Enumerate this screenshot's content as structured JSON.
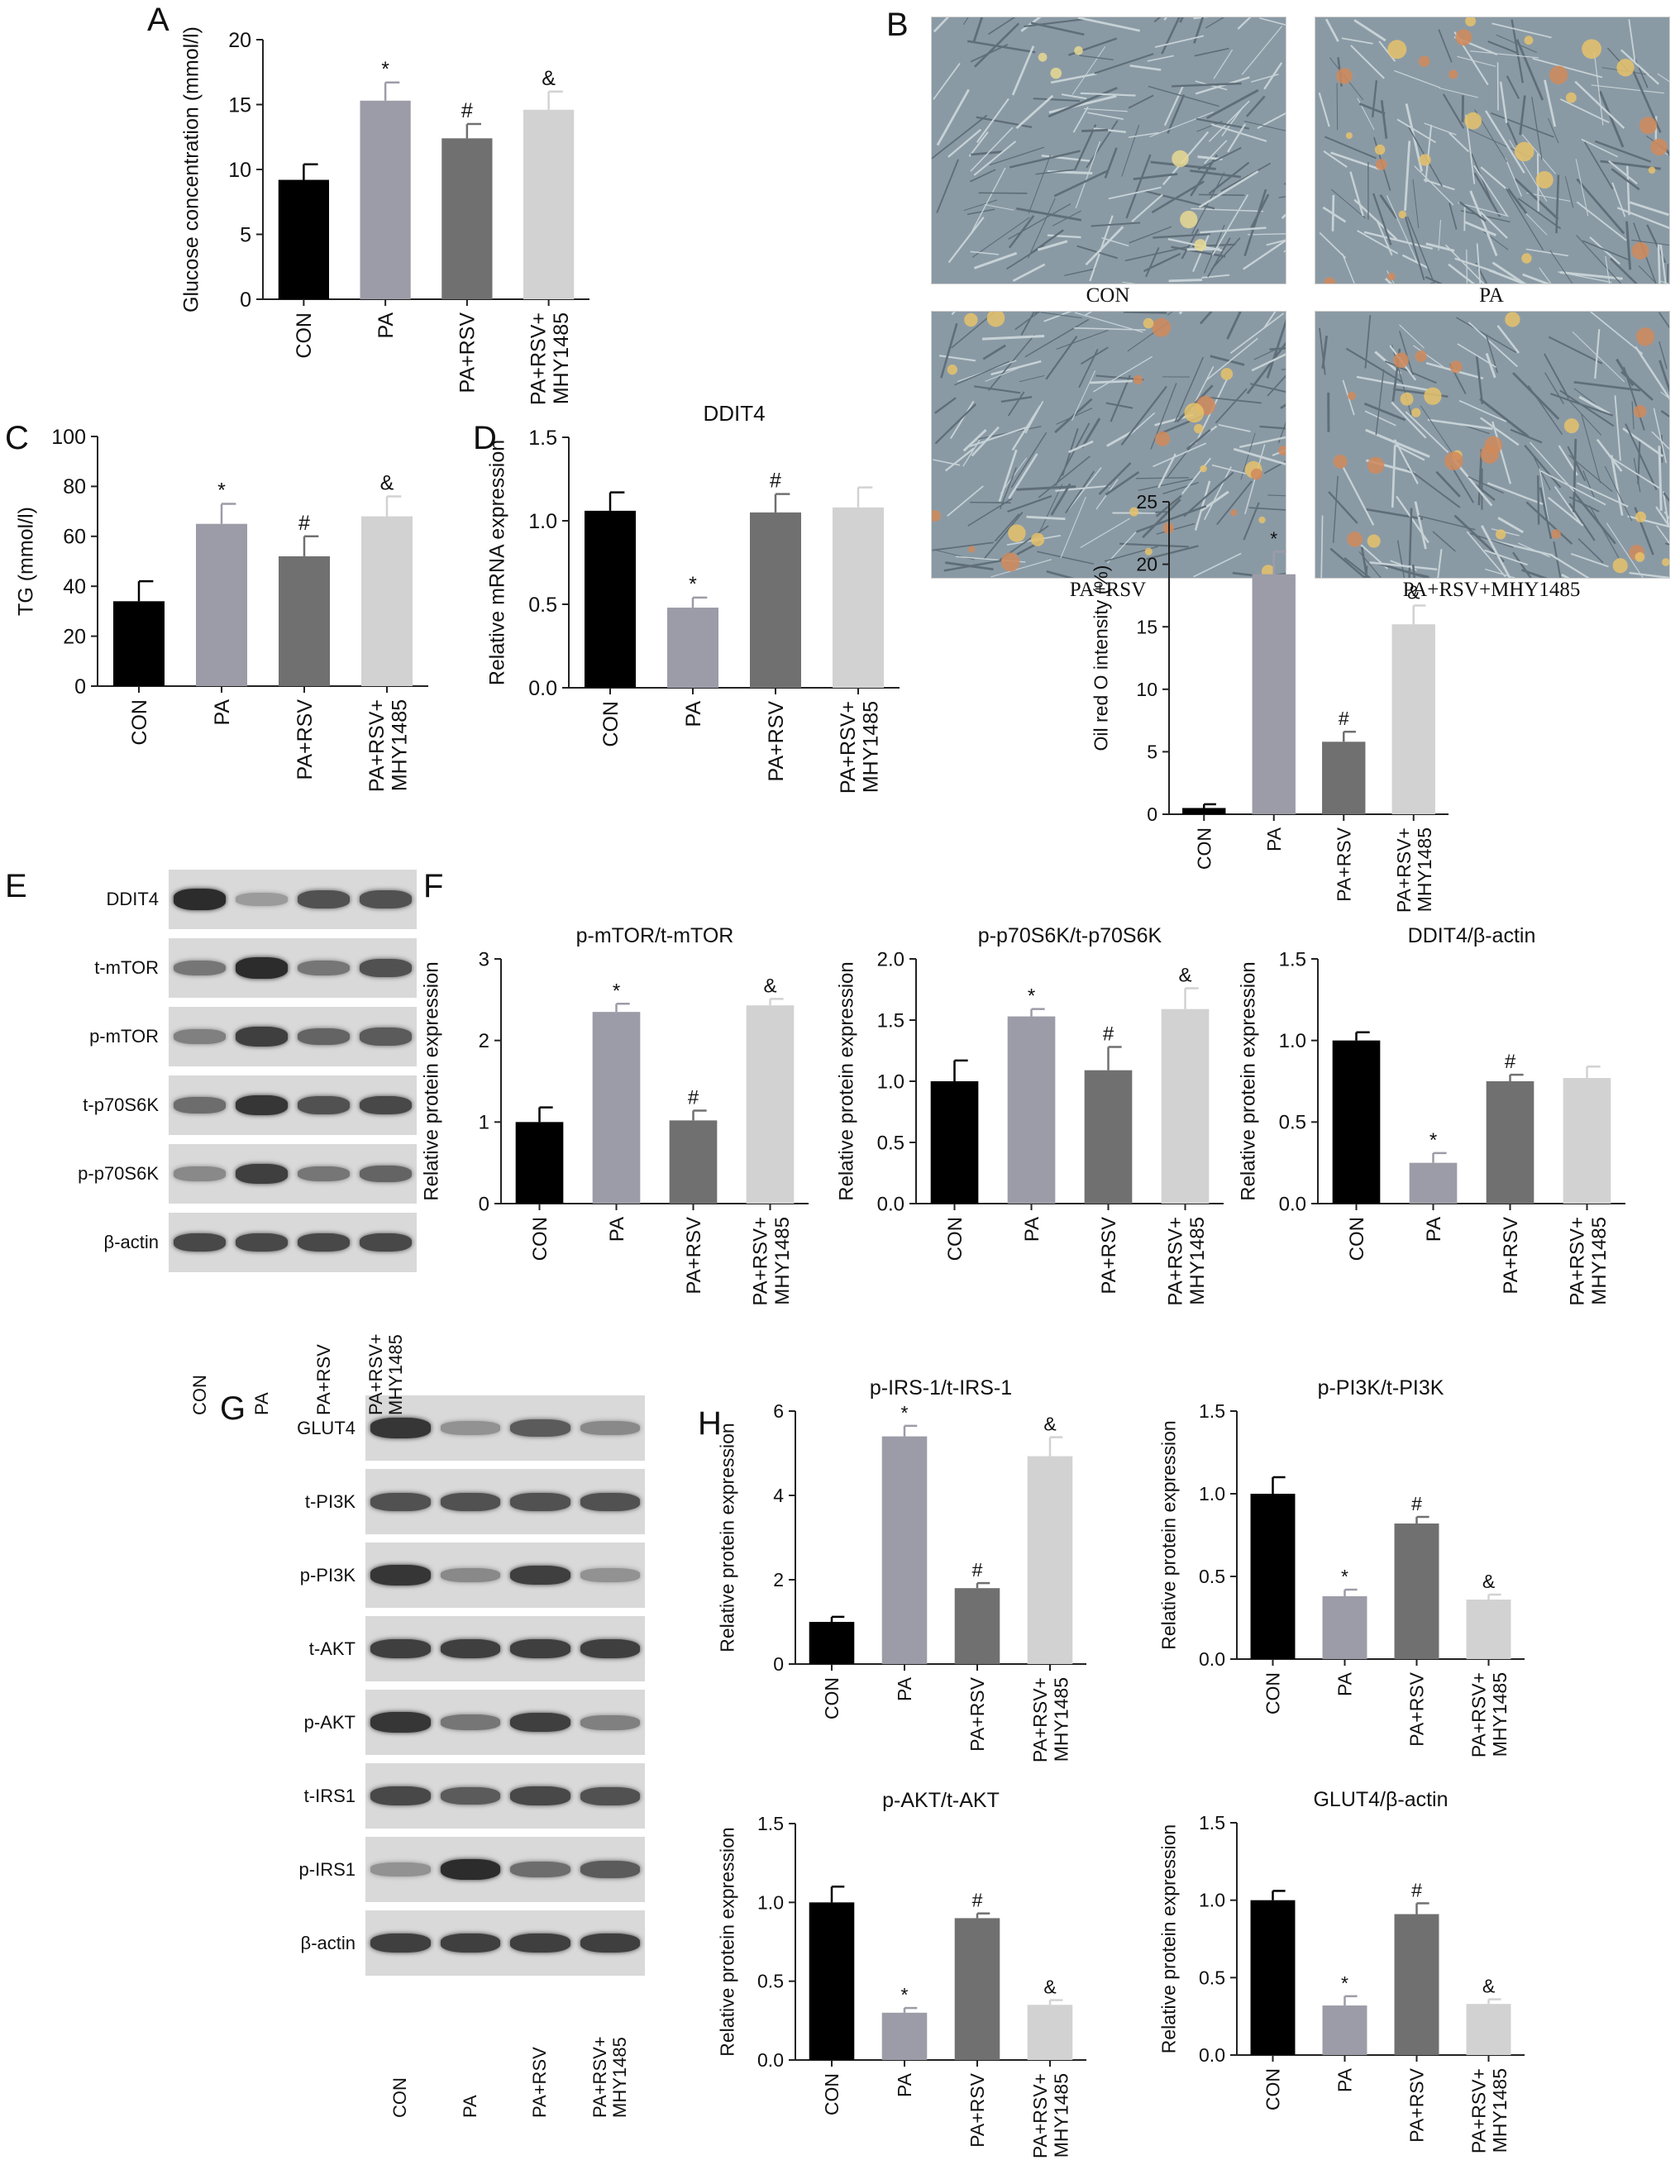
{
  "panel_labels": {
    "A": "A",
    "B": "B",
    "C": "C",
    "D": "D",
    "E": "E",
    "F": "F",
    "G": "G",
    "H": "H"
  },
  "colors": {
    "CON": "#000000",
    "PA": "#9c9ca8",
    "PA+RSV": "#707070",
    "PA+RSV+MHY1485": "#d2d2d2"
  },
  "micrographs": {
    "captions": [
      "CON",
      "PA",
      "PA+RSV",
      "PA+RSV+MHY1485"
    ],
    "background_color": "#8a9aa5",
    "stain_color": "#d08a5a"
  },
  "blot_E": {
    "rows": [
      "DDIT4",
      "t-mTOR",
      "p-mTOR",
      "t-p70S6K",
      "p-p70S6K",
      "β-actin"
    ],
    "lanes": [
      "CON",
      "PA",
      "PA+RSV",
      "PA+RSV+\nMHY1485"
    ],
    "band_intensity": [
      [
        0.95,
        0.35,
        0.75,
        0.75
      ],
      [
        0.55,
        0.95,
        0.55,
        0.75
      ],
      [
        0.5,
        0.85,
        0.65,
        0.7
      ],
      [
        0.6,
        0.9,
        0.75,
        0.8
      ],
      [
        0.45,
        0.85,
        0.55,
        0.65
      ],
      [
        0.8,
        0.8,
        0.8,
        0.8
      ]
    ]
  },
  "blot_G": {
    "rows": [
      "GLUT4",
      "t-PI3K",
      "p-PI3K",
      "t-AKT",
      "p-AKT",
      "t-IRS1",
      "p-IRS1",
      "β-actin"
    ],
    "lanes": [
      "CON",
      "PA",
      "PA+RSV",
      "PA+RSV+\nMHY1485"
    ],
    "band_intensity": [
      [
        0.9,
        0.4,
        0.7,
        0.45
      ],
      [
        0.75,
        0.75,
        0.75,
        0.75
      ],
      [
        0.9,
        0.45,
        0.85,
        0.4
      ],
      [
        0.85,
        0.85,
        0.85,
        0.85
      ],
      [
        0.9,
        0.55,
        0.85,
        0.5
      ],
      [
        0.8,
        0.7,
        0.8,
        0.75
      ],
      [
        0.4,
        0.95,
        0.6,
        0.7
      ],
      [
        0.85,
        0.85,
        0.85,
        0.85
      ]
    ]
  },
  "chart_data": [
    {
      "id": "A",
      "type": "bar",
      "title": "",
      "ylabel": "Glucose concentration (mmol/l)",
      "categories": [
        "CON",
        "PA",
        "PA+RSV",
        "PA+RSV+\nMHY1485"
      ],
      "values": [
        9.2,
        15.3,
        12.4,
        14.6
      ],
      "errors": [
        1.2,
        1.4,
        1.1,
        1.4
      ],
      "sig": [
        "",
        "*",
        "#",
        "&"
      ],
      "ylim": [
        0,
        20
      ],
      "yticks": [
        0,
        5,
        10,
        15,
        20
      ],
      "ytick_labels": [
        "0",
        "5",
        "10",
        "15",
        "20"
      ]
    },
    {
      "id": "C",
      "type": "bar",
      "title": "",
      "ylabel": "TG (mmol/l)",
      "categories": [
        "CON",
        "PA",
        "PA+RSV",
        "PA+RSV+\nMHY1485"
      ],
      "values": [
        34,
        65,
        52,
        68
      ],
      "errors": [
        8,
        8,
        8,
        8
      ],
      "sig": [
        "",
        "*",
        "#",
        "&"
      ],
      "ylim": [
        0,
        100
      ],
      "yticks": [
        0,
        20,
        40,
        60,
        80,
        100
      ],
      "ytick_labels": [
        "0",
        "20",
        "40",
        "60",
        "80",
        "100"
      ]
    },
    {
      "id": "D",
      "type": "bar",
      "title": "DDIT4",
      "ylabel": "Relative mRNA expression",
      "categories": [
        "CON",
        "PA",
        "PA+RSV",
        "PA+RSV+\nMHY1485"
      ],
      "values": [
        1.06,
        0.48,
        1.05,
        1.08
      ],
      "errors": [
        0.11,
        0.06,
        0.11,
        0.12
      ],
      "sig": [
        "",
        "*",
        "#",
        ""
      ],
      "ylim": [
        0,
        1.5
      ],
      "yticks": [
        0,
        0.5,
        1.0,
        1.5
      ],
      "ytick_labels": [
        "0.0",
        "0.5",
        "1.0",
        "1.5"
      ]
    },
    {
      "id": "Boil",
      "type": "bar",
      "title": "",
      "ylabel": "Oil red O intensity (%)",
      "categories": [
        "CON",
        "PA",
        "PA+RSV",
        "PA+RSV+\nMHY1485"
      ],
      "values": [
        0.5,
        19.2,
        5.8,
        15.2
      ],
      "errors": [
        0.3,
        1.8,
        0.8,
        1.5
      ],
      "sig": [
        "",
        "*",
        "#",
        "&"
      ],
      "ylim": [
        0,
        25
      ],
      "yticks": [
        0,
        5,
        10,
        15,
        20,
        25
      ],
      "ytick_labels": [
        "0",
        "5",
        "10",
        "15",
        "20",
        "25"
      ]
    },
    {
      "id": "F1",
      "type": "bar",
      "title": "p-mTOR/t-mTOR",
      "ylabel": "Relative protein expression",
      "categories": [
        "CON",
        "PA",
        "PA+RSV",
        "PA+RSV+\nMHY1485"
      ],
      "values": [
        1.0,
        2.35,
        1.02,
        2.43
      ],
      "errors": [
        0.18,
        0.1,
        0.12,
        0.08
      ],
      "sig": [
        "",
        "*",
        "#",
        "&"
      ],
      "ylim": [
        0,
        3
      ],
      "yticks": [
        0,
        1,
        2,
        3
      ],
      "ytick_labels": [
        "0",
        "1",
        "2",
        "3"
      ]
    },
    {
      "id": "F2",
      "type": "bar",
      "title": "p-p70S6K/t-p70S6K",
      "ylabel": "Relative protein expression",
      "categories": [
        "CON",
        "PA",
        "PA+RSV",
        "PA+RSV+\nMHY1485"
      ],
      "values": [
        1.0,
        1.53,
        1.09,
        1.59
      ],
      "errors": [
        0.17,
        0.06,
        0.19,
        0.17
      ],
      "sig": [
        "",
        "*",
        "#",
        "&"
      ],
      "ylim": [
        0,
        2.0
      ],
      "yticks": [
        0,
        0.5,
        1.0,
        1.5,
        2.0
      ],
      "ytick_labels": [
        "0.0",
        "0.5",
        "1.0",
        "1.5",
        "2.0"
      ]
    },
    {
      "id": "F3",
      "type": "bar",
      "title": "DDIT4/β-actin",
      "ylabel": "Relative protein expression",
      "categories": [
        "CON",
        "PA",
        "PA+RSV",
        "PA+RSV+\nMHY1485"
      ],
      "values": [
        1.0,
        0.25,
        0.75,
        0.77
      ],
      "errors": [
        0.05,
        0.06,
        0.04,
        0.07
      ],
      "sig": [
        "",
        "*",
        "#",
        ""
      ],
      "ylim": [
        0,
        1.5
      ],
      "yticks": [
        0,
        0.5,
        1.0,
        1.5
      ],
      "ytick_labels": [
        "0.0",
        "0.5",
        "1.0",
        "1.5"
      ]
    },
    {
      "id": "H1",
      "type": "bar",
      "title": "p-IRS-1/t-IRS-1",
      "ylabel": "Relative protein expression",
      "categories": [
        "CON",
        "PA",
        "PA+RSV",
        "PA+RSV+\nMHY1485"
      ],
      "values": [
        1.0,
        5.4,
        1.8,
        4.93
      ],
      "errors": [
        0.12,
        0.25,
        0.12,
        0.45
      ],
      "sig": [
        "",
        "*",
        "#",
        "&"
      ],
      "ylim": [
        0,
        6
      ],
      "yticks": [
        0,
        2,
        4,
        6
      ],
      "ytick_labels": [
        "0",
        "2",
        "4",
        "6"
      ]
    },
    {
      "id": "H2",
      "type": "bar",
      "title": "p-PI3K/t-PI3K",
      "ylabel": "Relative protein expression",
      "categories": [
        "CON",
        "PA",
        "PA+RSV",
        "PA+RSV+\nMHY1485"
      ],
      "values": [
        1.0,
        0.38,
        0.82,
        0.36
      ],
      "errors": [
        0.1,
        0.04,
        0.04,
        0.03
      ],
      "sig": [
        "",
        "*",
        "#",
        "&"
      ],
      "ylim": [
        0,
        1.5
      ],
      "yticks": [
        0,
        0.5,
        1.0,
        1.5
      ],
      "ytick_labels": [
        "0.0",
        "0.5",
        "1.0",
        "1.5"
      ]
    },
    {
      "id": "H3",
      "type": "bar",
      "title": "p-AKT/t-AKT",
      "ylabel": "Relative protein expression",
      "categories": [
        "CON",
        "PA",
        "PA+RSV",
        "PA+RSV+\nMHY1485"
      ],
      "values": [
        1.0,
        0.3,
        0.9,
        0.35
      ],
      "errors": [
        0.1,
        0.03,
        0.03,
        0.03
      ],
      "sig": [
        "",
        "*",
        "#",
        "&"
      ],
      "ylim": [
        0,
        1.5
      ],
      "yticks": [
        0,
        0.5,
        1.0,
        1.5
      ],
      "ytick_labels": [
        "0.0",
        "0.5",
        "1.0",
        "1.5"
      ]
    },
    {
      "id": "H4",
      "type": "bar",
      "title": "GLUT4/β-actin",
      "ylabel": "Relative protein expression",
      "categories": [
        "CON",
        "PA",
        "PA+RSV",
        "PA+RSV+\nMHY1485"
      ],
      "values": [
        1.0,
        0.32,
        0.91,
        0.33
      ],
      "errors": [
        0.06,
        0.06,
        0.07,
        0.03
      ],
      "sig": [
        "",
        "*",
        "#",
        "&"
      ],
      "ylim": [
        0,
        1.5
      ],
      "yticks": [
        0,
        0.5,
        1.0,
        1.5
      ],
      "ytick_labels": [
        "0.0",
        "0.5",
        "1.0",
        "1.5"
      ]
    }
  ]
}
